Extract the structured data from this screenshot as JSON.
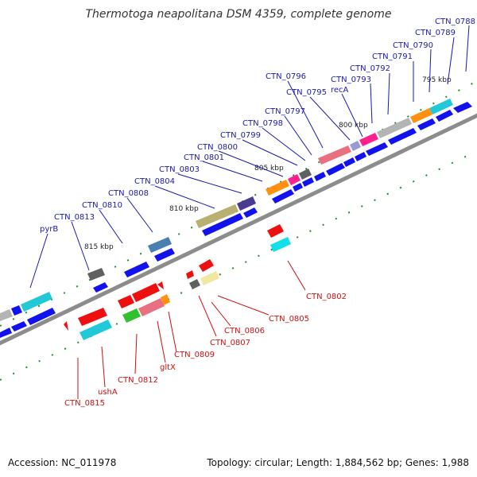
{
  "title": "Thermotoga neapolitana DSM 4359, complete genome",
  "footer": {
    "accession": "Accession: NC_011978",
    "summary": "Topology: circular; Length: 1,884,562 bp; Genes: 1,988"
  },
  "scale_ticks": [
    "795 kbp",
    "800 kbp",
    "805 kbp",
    "810 kbp",
    "815 kbp"
  ],
  "forward_genes": [
    "CTN_0788",
    "CTN_0789",
    "CTN_0790",
    "CTN_0791",
    "CTN_0792",
    "CTN_0793",
    "recA",
    "CTN_0795",
    "CTN_0796",
    "CTN_0797",
    "CTN_0798",
    "CTN_0799",
    "CTN_0800",
    "CTN_0801",
    "CTN_0803",
    "CTN_0804",
    "CTN_0808",
    "CTN_0810",
    "CTN_0813",
    "pyrB"
  ],
  "reverse_genes": [
    "CTN_0802",
    "CTN_0805",
    "CTN_0806",
    "CTN_0807",
    "CTN_0809",
    "gltX",
    "CTN_0812",
    "ushA",
    "CTN_0815"
  ],
  "colors": {
    "backbone": "#8c8c8c",
    "forward_label": "#1a1aaa",
    "reverse_label": "#cc1111",
    "tick": "#2a8a2a"
  }
}
